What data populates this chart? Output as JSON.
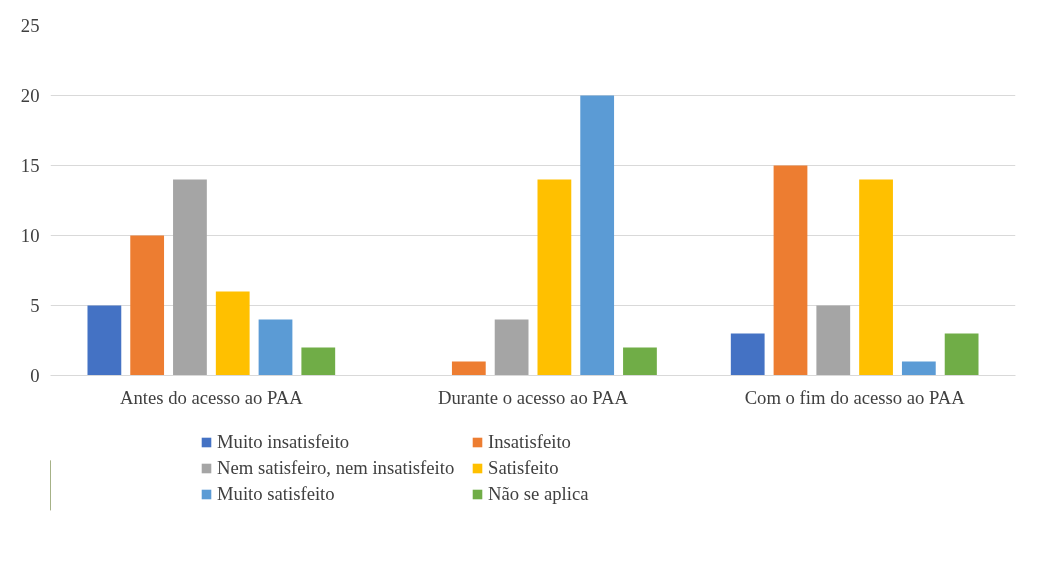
{
  "chart_data": {
    "type": "bar",
    "categories": [
      "Antes do acesso ao PAA",
      "Durante o acesso ao PAA",
      "Com o fim do acesso ao PAA"
    ],
    "series": [
      {
        "name": "Muito insatisfeito",
        "color": "#4472c4",
        "values": [
          5,
          null,
          3
        ]
      },
      {
        "name": "Insatisfeito",
        "color": "#ed7d31",
        "values": [
          10,
          1,
          15
        ]
      },
      {
        "name": "Nem satisfeiro, nem insatisfeito",
        "color": "#a5a5a5",
        "values": [
          14,
          4,
          5
        ]
      },
      {
        "name": "Satisfeito",
        "color": "#ffc000",
        "values": [
          6,
          14,
          14
        ]
      },
      {
        "name": "Muito satisfeito",
        "color": "#5b9bd5",
        "values": [
          4,
          20,
          1
        ]
      },
      {
        "name": "Não se aplica",
        "color": "#70ad47",
        "values": [
          2,
          2,
          3
        ]
      }
    ],
    "ylim": [
      0,
      25
    ],
    "yticks": [
      0,
      5,
      10,
      15,
      20,
      25
    ],
    "grid": "y",
    "legend": "bottom"
  }
}
